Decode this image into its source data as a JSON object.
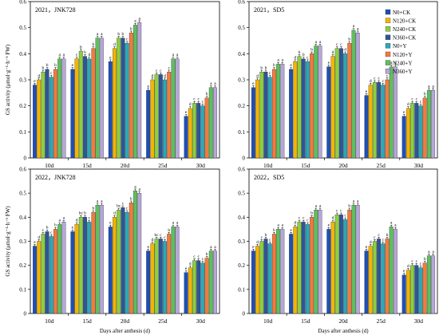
{
  "figure": {
    "y_axis_label": "GS activity (μmol·g⁻¹·h⁻¹ FW)",
    "x_axis_label": "Days after anthesis (d)"
  },
  "legend": {
    "placement": "top-right of the top-right panel",
    "entries": [
      {
        "name": "N0+CK",
        "color": "#1f4fb4"
      },
      {
        "name": "N120+CK",
        "color": "#f5b400"
      },
      {
        "name": "N240+CK",
        "color": "#8ccf3f"
      },
      {
        "name": "N360+CK",
        "color": "#2e5597"
      },
      {
        "name": "N0+Y",
        "color": "#2aa8b8"
      },
      {
        "name": "N120+Y",
        "color": "#f47a3c"
      },
      {
        "name": "N240+Y",
        "color": "#5cc05c"
      },
      {
        "name": "N360+Y",
        "color": "#b7a6d9"
      }
    ]
  },
  "chart_data": [
    {
      "type": "bar",
      "title": "2021，JNK728",
      "categories": [
        "10d",
        "15d",
        "20d",
        "25d",
        "30d"
      ],
      "ylim": [
        0,
        0.6
      ],
      "yticks": [
        "0",
        "0.1",
        "0.2",
        "0.3",
        "0.4",
        "0.5",
        "0.6"
      ],
      "show_ylabel": true,
      "show_xlabel": false,
      "series": [
        {
          "name": "N0+CK",
          "values": [
            0.28,
            0.34,
            0.37,
            0.26,
            0.16
          ],
          "letters": [
            "e",
            "e",
            "e",
            "e",
            "e"
          ]
        },
        {
          "name": "N120+CK",
          "values": [
            0.3,
            0.38,
            0.42,
            0.3,
            0.19
          ],
          "letters": [
            "d",
            "c",
            "d",
            "d",
            "d"
          ]
        },
        {
          "name": "N240+CK",
          "values": [
            0.33,
            0.41,
            0.46,
            0.32,
            0.21
          ],
          "letters": [
            "b",
            "b",
            "b",
            "c",
            "c"
          ]
        },
        {
          "name": "N360+CK",
          "values": [
            0.34,
            0.39,
            0.46,
            0.32,
            0.21
          ],
          "letters": [
            "b",
            "b",
            "b",
            "c",
            "c"
          ]
        },
        {
          "name": "N0+Y",
          "values": [
            0.31,
            0.38,
            0.44,
            0.3,
            0.2
          ],
          "letters": [
            "c",
            "d",
            "c",
            "d",
            "c"
          ]
        },
        {
          "name": "N120+Y",
          "values": [
            0.34,
            0.42,
            0.48,
            0.33,
            0.23
          ],
          "letters": [
            "b",
            "b",
            "b",
            "c",
            "b"
          ]
        },
        {
          "name": "N240+Y",
          "values": [
            0.38,
            0.46,
            0.51,
            0.38,
            0.27
          ],
          "letters": [
            "a",
            "a",
            "a",
            "a",
            "a"
          ]
        },
        {
          "name": "N360+Y",
          "values": [
            0.38,
            0.46,
            0.52,
            0.38,
            0.27
          ],
          "letters": [
            "a",
            "a",
            "a",
            "a",
            "a"
          ]
        }
      ]
    },
    {
      "type": "bar",
      "title": "2021，SD5",
      "categories": [
        "10d",
        "15d",
        "20d",
        "25d",
        "30d"
      ],
      "ylim": [
        0,
        0.6
      ],
      "yticks": [
        "0",
        "0.1",
        "0.2",
        "0.3",
        "0.4",
        "0.5",
        "0.6"
      ],
      "show_ylabel": false,
      "show_xlabel": false,
      "series": [
        {
          "name": "N0+CK",
          "values": [
            0.27,
            0.34,
            0.35,
            0.24,
            0.16
          ],
          "letters": [
            "e",
            "e",
            "e",
            "e",
            "e"
          ]
        },
        {
          "name": "N120+CK",
          "values": [
            0.3,
            0.37,
            0.39,
            0.28,
            0.19
          ],
          "letters": [
            "d",
            "d",
            "d",
            "d",
            "d"
          ]
        },
        {
          "name": "N240+CK",
          "values": [
            0.33,
            0.39,
            0.42,
            0.29,
            0.21
          ],
          "letters": [
            "b",
            "b",
            "c",
            "c",
            "c"
          ]
        },
        {
          "name": "N360+CK",
          "values": [
            0.33,
            0.38,
            0.42,
            0.29,
            0.21
          ],
          "letters": [
            "b",
            "b",
            "c",
            "c",
            "c"
          ]
        },
        {
          "name": "N0+Y",
          "values": [
            0.31,
            0.37,
            0.4,
            0.28,
            0.2
          ],
          "letters": [
            "c",
            "c",
            "d",
            "c",
            "c"
          ]
        },
        {
          "name": "N120+Y",
          "values": [
            0.34,
            0.4,
            0.44,
            0.3,
            0.23
          ],
          "letters": [
            "b",
            "b",
            "b",
            "c",
            "b"
          ]
        },
        {
          "name": "N240+Y",
          "values": [
            0.36,
            0.43,
            0.49,
            0.35,
            0.26
          ],
          "letters": [
            "a",
            "a",
            "a",
            "a",
            "a"
          ]
        },
        {
          "name": "N360+Y",
          "values": [
            0.36,
            0.43,
            0.48,
            0.35,
            0.26
          ],
          "letters": [
            "a",
            "a",
            "a",
            "a",
            "a"
          ]
        }
      ]
    },
    {
      "type": "bar",
      "title": "2022，JNK728",
      "categories": [
        "10d",
        "15d",
        "20d",
        "25d",
        "30d"
      ],
      "ylim": [
        0,
        0.6
      ],
      "yticks": [
        "0",
        "0.1",
        "0.2",
        "0.3",
        "0.4",
        "0.5",
        "0.6"
      ],
      "show_ylabel": true,
      "show_xlabel": true,
      "series": [
        {
          "name": "N0+CK",
          "values": [
            0.28,
            0.34,
            0.36,
            0.26,
            0.17
          ],
          "letters": [
            "e",
            "e",
            "e",
            "e",
            "e"
          ]
        },
        {
          "name": "N120+CK",
          "values": [
            0.3,
            0.37,
            0.4,
            0.29,
            0.19
          ],
          "letters": [
            "d",
            "d",
            "d",
            "d",
            "d"
          ]
        },
        {
          "name": "N240+CK",
          "values": [
            0.33,
            0.4,
            0.43,
            0.31,
            0.22
          ],
          "letters": [
            "c",
            "bc",
            "bc",
            "bc",
            "c"
          ]
        },
        {
          "name": "N360+CK",
          "values": [
            0.34,
            0.4,
            0.44,
            0.31,
            0.22
          ],
          "letters": [
            "b",
            "b",
            "c",
            "c",
            "c"
          ]
        },
        {
          "name": "N0+Y",
          "values": [
            0.32,
            0.38,
            0.42,
            0.3,
            0.21
          ],
          "letters": [
            "c",
            "c",
            "c",
            "c",
            "c"
          ]
        },
        {
          "name": "N120+Y",
          "values": [
            0.35,
            0.42,
            0.46,
            0.33,
            0.23
          ],
          "letters": [
            "b",
            "b",
            "b",
            "b",
            "b"
          ]
        },
        {
          "name": "N240+Y",
          "values": [
            0.37,
            0.45,
            0.51,
            0.36,
            0.26
          ],
          "letters": [
            "a",
            "a",
            "a",
            "a",
            "a"
          ]
        },
        {
          "name": "N360+Y",
          "values": [
            0.38,
            0.45,
            0.5,
            0.36,
            0.26
          ],
          "letters": [
            "a",
            "a",
            "a",
            "a",
            "a"
          ]
        }
      ]
    },
    {
      "type": "bar",
      "title": "2022，SD5",
      "categories": [
        "10d",
        "15d",
        "20d",
        "25d",
        "30d"
      ],
      "ylim": [
        0,
        0.6
      ],
      "yticks": [
        "0",
        "0.1",
        "0.2",
        "0.3",
        "0.4",
        "0.5",
        "0.6"
      ],
      "show_ylabel": false,
      "show_xlabel": true,
      "series": [
        {
          "name": "N0+CK",
          "values": [
            0.26,
            0.33,
            0.35,
            0.26,
            0.16
          ],
          "letters": [
            "e",
            "e",
            "e",
            "e",
            "e"
          ]
        },
        {
          "name": "N120+CK",
          "values": [
            0.28,
            0.36,
            0.38,
            0.28,
            0.18
          ],
          "letters": [
            "d",
            "d",
            "d",
            "d",
            "d"
          ]
        },
        {
          "name": "N240+CK",
          "values": [
            0.3,
            0.38,
            0.41,
            0.3,
            0.2
          ],
          "letters": [
            "c",
            "c",
            "c",
            "c",
            "c"
          ]
        },
        {
          "name": "N360+CK",
          "values": [
            0.31,
            0.38,
            0.41,
            0.31,
            0.2
          ],
          "letters": [
            "b",
            "c",
            "c",
            "c",
            "c"
          ]
        },
        {
          "name": "N0+Y",
          "values": [
            0.29,
            0.37,
            0.39,
            0.29,
            0.19
          ],
          "letters": [
            "c",
            "c",
            "c",
            "c",
            "c"
          ]
        },
        {
          "name": "N120+Y",
          "values": [
            0.33,
            0.4,
            0.43,
            0.31,
            0.21
          ],
          "letters": [
            "b",
            "b",
            "b",
            "b",
            "b"
          ]
        },
        {
          "name": "N240+Y",
          "values": [
            0.35,
            0.43,
            0.45,
            0.36,
            0.24
          ],
          "letters": [
            "a",
            "a",
            "a",
            "a",
            "a"
          ]
        },
        {
          "name": "N360+Y",
          "values": [
            0.35,
            0.43,
            0.45,
            0.35,
            0.24
          ],
          "letters": [
            "a",
            "a",
            "a",
            "a",
            "a"
          ]
        }
      ]
    }
  ]
}
